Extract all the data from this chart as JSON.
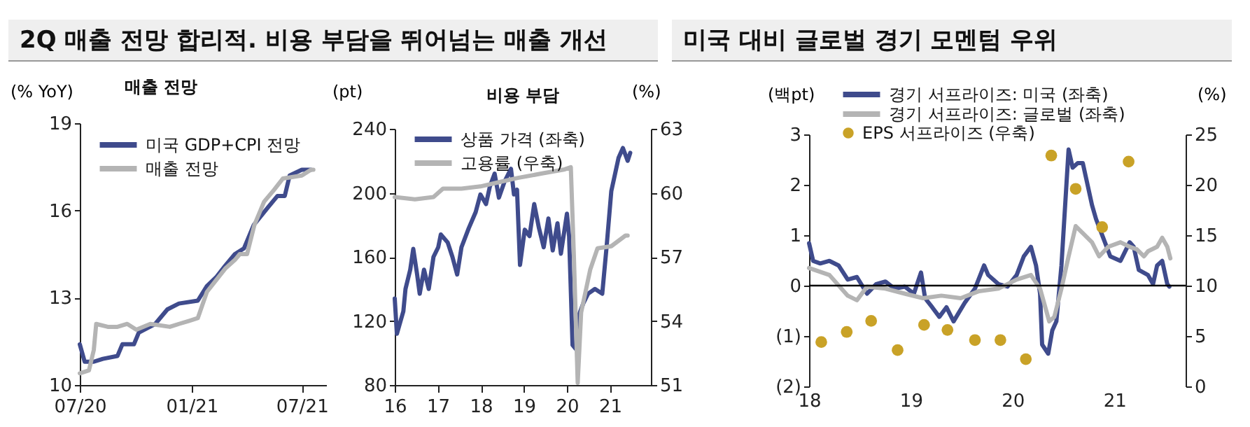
{
  "chart_data": [
    {
      "type": "line",
      "title": "2Q 매출 전망 합리적. 비용 부담을 뛰어넘는 매출 개선",
      "subtitle": "매출 전망",
      "ylabel": "(% YoY)",
      "xlim": [
        "2020-07-01",
        "2021-08-10"
      ],
      "xticks": [
        {
          "value": "2020-07-01",
          "label": "07/20"
        },
        {
          "value": "2021-01-01",
          "label": "01/21"
        },
        {
          "value": "2021-07-01",
          "label": "07/21"
        }
      ],
      "ylim": [
        10,
        19
      ],
      "yticks": [
        10,
        13,
        16,
        19
      ],
      "legend": "top left",
      "series": [
        {
          "name": "미국 GDP+CPI 전망",
          "color": "#3f4b8c",
          "x": [
            "2020-07-01",
            "2020-07-09",
            "2020-07-24",
            "2020-08-08",
            "2020-09-01",
            "2020-09-09",
            "2020-09-28",
            "2020-10-06",
            "2020-11-02",
            "2020-11-22",
            "2020-12-11",
            "2021-01-11",
            "2021-01-26",
            "2021-02-10",
            "2021-02-25",
            "2021-03-13",
            "2021-03-28",
            "2021-04-13",
            "2021-05-06",
            "2021-05-22",
            "2021-06-03",
            "2021-06-11",
            "2021-07-01",
            "2021-07-16"
          ],
          "values": [
            11.4,
            10.8,
            10.8,
            10.9,
            11.0,
            11.4,
            11.4,
            11.8,
            12.1,
            12.6,
            12.8,
            12.9,
            13.4,
            13.7,
            14.1,
            14.5,
            14.7,
            15.5,
            16.1,
            16.5,
            16.5,
            17.2,
            17.4,
            17.4
          ]
        },
        {
          "name": "매출 전망",
          "color": "#b4b4b4",
          "x": [
            "2020-07-01",
            "2020-07-16",
            "2020-07-24",
            "2020-07-28",
            "2020-08-16",
            "2020-09-01",
            "2020-09-17",
            "2020-10-02",
            "2020-10-25",
            "2020-11-26",
            "2020-12-11",
            "2020-12-27",
            "2021-01-11",
            "2021-01-26",
            "2021-02-10",
            "2021-02-25",
            "2021-03-13",
            "2021-03-21",
            "2021-04-02",
            "2021-04-14",
            "2021-04-30",
            "2021-05-16",
            "2021-05-31",
            "2021-07-01",
            "2021-07-16",
            "2021-07-20"
          ],
          "values": [
            10.4,
            10.5,
            11.2,
            12.1,
            12.0,
            12.0,
            12.1,
            11.9,
            12.1,
            12.0,
            12.1,
            12.2,
            12.3,
            13.2,
            13.6,
            14.0,
            14.3,
            14.5,
            14.5,
            15.5,
            16.3,
            16.7,
            17.1,
            17.2,
            17.4,
            17.4
          ]
        }
      ]
    },
    {
      "type": "line",
      "title": "비용 부담",
      "ylabel": "(pt)",
      "y2label": "(%)",
      "xlim": [
        2016,
        2021.95
      ],
      "xticks": [
        {
          "value": 2016,
          "label": "16"
        },
        {
          "value": 2017,
          "label": "17"
        },
        {
          "value": 2018,
          "label": "18"
        },
        {
          "value": 2019,
          "label": "19"
        },
        {
          "value": 2020,
          "label": "20"
        },
        {
          "value": 2021,
          "label": "21"
        }
      ],
      "ylim": [
        80,
        240
      ],
      "yticks": [
        80,
        120,
        160,
        200,
        240
      ],
      "y2lim": [
        51,
        63
      ],
      "y2ticks": [
        51,
        54,
        57,
        60,
        63
      ],
      "legend": "top left",
      "series": [
        {
          "name": "상품 가격 (좌축)",
          "color": "#3f4b8c",
          "x": [
            2016.0,
            2016.05,
            2016.2,
            2016.25,
            2016.36,
            2016.43,
            2016.52,
            2016.58,
            2016.68,
            2016.79,
            2016.9,
            2017.01,
            2017.07,
            2017.23,
            2017.34,
            2017.45,
            2017.55,
            2017.72,
            2017.88,
            2017.99,
            2018.12,
            2018.21,
            2018.32,
            2018.42,
            2018.55,
            2018.7,
            2018.77,
            2018.84,
            2018.91,
            2019.02,
            2019.13,
            2019.24,
            2019.35,
            2019.46,
            2019.57,
            2019.67,
            2019.78,
            2019.86,
            2020.0,
            2020.05,
            2020.13,
            2020.22,
            2020.27,
            2020.38,
            2020.49,
            2020.65,
            2020.82,
            2020.92,
            2021.03,
            2021.2,
            2021.3,
            2021.41,
            2021.47
          ],
          "values": [
            134,
            112,
            126,
            140,
            152,
            165,
            149,
            137,
            152,
            140,
            160,
            166,
            174,
            169,
            160,
            149,
            166,
            178,
            188,
            199,
            193,
            204,
            212,
            197,
            207,
            215,
            199,
            202,
            155,
            177,
            173,
            193,
            178,
            166,
            184,
            164,
            181,
            162,
            187,
            173,
            105,
            102,
            123,
            131,
            137,
            140,
            137,
            166,
            201,
            222,
            228,
            220,
            225
          ]
        },
        {
          "name": "고용률 (우축)",
          "color": "#b4b4b4",
          "axis": "y2",
          "x": [
            2016.0,
            2016.47,
            2016.9,
            2017.12,
            2017.55,
            2017.99,
            2018.42,
            2018.86,
            2019.4,
            2019.95,
            2020.09,
            2020.16,
            2020.25,
            2020.33,
            2020.54,
            2020.71,
            2021.03,
            2021.36,
            2021.41
          ],
          "values": [
            59.8,
            59.7,
            59.8,
            60.2,
            60.2,
            60.3,
            60.5,
            60.7,
            60.9,
            61.1,
            61.2,
            57.1,
            51.1,
            54.4,
            56.4,
            57.4,
            57.5,
            58.0,
            58.0
          ]
        }
      ]
    },
    {
      "type": "line",
      "title": "미국 대비 글로벌 경기 모멘텀 우위",
      "ylabel": "(백pt)",
      "y2label": "(%)",
      "xlim": [
        2018,
        2021.7
      ],
      "xticks": [
        {
          "value": 2018,
          "label": "18"
        },
        {
          "value": 2019,
          "label": "19"
        },
        {
          "value": 2020,
          "label": "20"
        },
        {
          "value": 2021,
          "label": "21"
        }
      ],
      "ylim": [
        -2,
        3
      ],
      "yticks": [
        {
          "value": -2,
          "label": "(2)"
        },
        {
          "value": -1,
          "label": "(1)"
        },
        0,
        1,
        2,
        3
      ],
      "y2lim": [
        0,
        25
      ],
      "y2ticks": [
        0,
        5,
        10,
        15,
        20,
        25
      ],
      "legend": "top",
      "ref_lines": [
        {
          "axis": "y",
          "value": 0,
          "color": "#000000"
        }
      ],
      "series": [
        {
          "name": "경기 서프라이즈: 미국 (좌축)",
          "color": "#3f4b8c",
          "x": [
            2018.0,
            2018.04,
            2018.11,
            2018.2,
            2018.29,
            2018.38,
            2018.47,
            2018.57,
            2018.66,
            2018.75,
            2018.84,
            2018.94,
            2019.03,
            2019.1,
            2019.14,
            2019.21,
            2019.28,
            2019.35,
            2019.42,
            2019.53,
            2019.63,
            2019.72,
            2019.76,
            2019.86,
            2019.95,
            2020.04,
            2020.11,
            2020.18,
            2020.23,
            2020.27,
            2020.29,
            2020.32,
            2020.35,
            2020.39,
            2020.43,
            2020.48,
            2020.55,
            2020.59,
            2020.64,
            2020.69,
            2020.73,
            2020.78,
            2020.82,
            2020.89,
            2020.96,
            2021.06,
            2021.15,
            2021.19,
            2021.24,
            2021.33,
            2021.38,
            2021.42,
            2021.47,
            2021.52,
            2021.54
          ],
          "values": [
            0.84,
            0.49,
            0.44,
            0.49,
            0.4,
            0.12,
            0.17,
            -0.16,
            0.03,
            0.08,
            -0.06,
            -0.02,
            -0.16,
            0.26,
            -0.25,
            -0.43,
            -0.62,
            -0.43,
            -0.71,
            -0.34,
            -0.06,
            0.4,
            0.21,
            0.03,
            -0.02,
            0.21,
            0.58,
            0.77,
            0.4,
            -0.16,
            -1.17,
            -1.26,
            -1.35,
            -0.89,
            -0.71,
            0.4,
            2.7,
            2.34,
            2.43,
            2.43,
            2.06,
            1.6,
            1.32,
            0.95,
            0.58,
            0.49,
            0.86,
            0.77,
            0.31,
            0.21,
            0.03,
            0.4,
            0.49,
            0.03,
            -0.02
          ]
        },
        {
          "name": "경기 서프라이즈: 글로벌 (좌축)",
          "color": "#b4b4b4",
          "x": [
            2018.0,
            2018.2,
            2018.38,
            2018.47,
            2018.57,
            2018.75,
            2018.94,
            2019.12,
            2019.3,
            2019.49,
            2019.67,
            2019.86,
            2020.04,
            2020.18,
            2020.27,
            2020.36,
            2020.41,
            2020.48,
            2020.55,
            2020.62,
            2020.69,
            2020.78,
            2020.85,
            2020.94,
            2021.06,
            2021.15,
            2021.22,
            2021.29,
            2021.33,
            2021.42,
            2021.47,
            2021.52,
            2021.55
          ],
          "values": [
            0.35,
            0.21,
            -0.2,
            -0.29,
            -0.02,
            -0.06,
            -0.16,
            -0.25,
            -0.2,
            -0.25,
            -0.11,
            -0.06,
            0.12,
            0.21,
            -0.06,
            -0.71,
            -0.62,
            -0.06,
            0.58,
            1.18,
            1.04,
            0.86,
            0.58,
            0.77,
            0.86,
            0.77,
            0.72,
            0.58,
            0.68,
            0.77,
            0.95,
            0.77,
            0.54
          ]
        },
        {
          "name": "EPS 서프라이즈 (우축)",
          "color": "#c9a227",
          "type": "scatter",
          "marker": "circle",
          "axis": "y2",
          "x": [
            2018.12,
            2018.37,
            2018.61,
            2018.87,
            2019.13,
            2019.36,
            2019.63,
            2019.88,
            2020.13,
            2020.38,
            2020.62,
            2020.88,
            2021.14
          ],
          "values": [
            4.4,
            5.4,
            6.5,
            3.6,
            6.1,
            5.6,
            4.6,
            4.6,
            2.7,
            22.9,
            19.6,
            15.8,
            22.3
          ]
        }
      ]
    }
  ]
}
